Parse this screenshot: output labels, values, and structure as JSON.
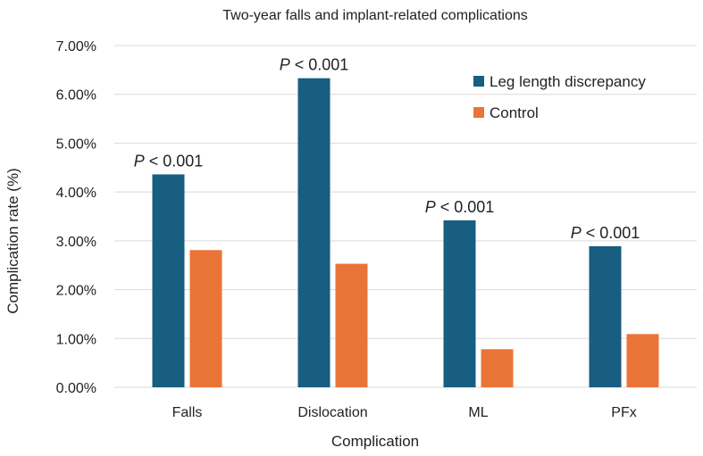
{
  "chart_data": {
    "type": "bar",
    "title": "Two-year falls and implant-related complications",
    "xlabel": "Complication",
    "ylabel": "Complication rate (%)",
    "ylim": [
      0,
      7
    ],
    "yticks": [
      0,
      1,
      2,
      3,
      4,
      5,
      6,
      7
    ],
    "ytick_labels": [
      "0.00%",
      "1.00%",
      "2.00%",
      "3.00%",
      "4.00%",
      "5.00%",
      "6.00%",
      "7.00%"
    ],
    "categories": [
      "Falls",
      "Dislocation",
      "ML",
      "PFx"
    ],
    "series": [
      {
        "name": "Leg length discrepancy",
        "color": "#175e80",
        "values": [
          4.36,
          6.33,
          3.42,
          2.89
        ]
      },
      {
        "name": "Control",
        "color": "#ea7437",
        "values": [
          2.81,
          2.53,
          0.78,
          1.09
        ]
      }
    ],
    "annotations": [
      {
        "category": "Falls",
        "p": "P",
        "text": " < 0.001"
      },
      {
        "category": "Dislocation",
        "p": "P",
        "text": " < 0.001"
      },
      {
        "category": "ML",
        "p": "P",
        "text": " < 0.001"
      },
      {
        "category": "PFx",
        "p": "P",
        "text": " < 0.001"
      }
    ],
    "grid": true,
    "legend_position": "top-right"
  }
}
